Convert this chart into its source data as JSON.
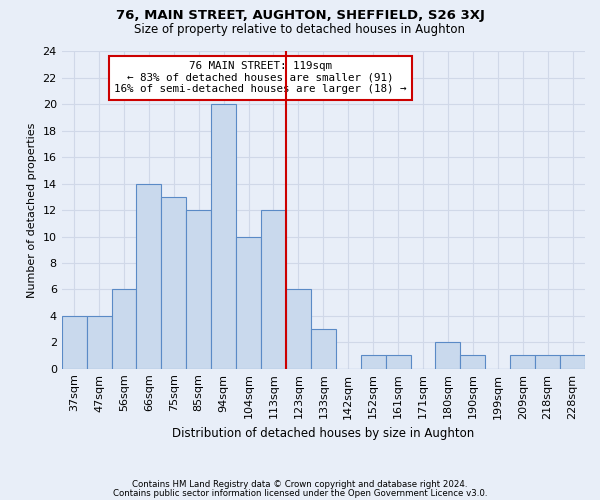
{
  "title1": "76, MAIN STREET, AUGHTON, SHEFFIELD, S26 3XJ",
  "title2": "Size of property relative to detached houses in Aughton",
  "xlabel": "Distribution of detached houses by size in Aughton",
  "ylabel": "Number of detached properties",
  "bin_labels": [
    "37sqm",
    "47sqm",
    "56sqm",
    "66sqm",
    "75sqm",
    "85sqm",
    "94sqm",
    "104sqm",
    "113sqm",
    "123sqm",
    "133sqm",
    "142sqm",
    "152sqm",
    "161sqm",
    "171sqm",
    "180sqm",
    "190sqm",
    "199sqm",
    "209sqm",
    "218sqm",
    "228sqm"
  ],
  "values": [
    4,
    4,
    6,
    14,
    13,
    12,
    20,
    10,
    12,
    6,
    3,
    0,
    1,
    1,
    0,
    2,
    1,
    0,
    1,
    1,
    1
  ],
  "bar_color": "#c9d9ed",
  "bar_edge_color": "#5a8ac6",
  "vline_x": 8.5,
  "vline_color": "#cc0000",
  "annotation_text": "76 MAIN STREET: 119sqm\n← 83% of detached houses are smaller (91)\n16% of semi-detached houses are larger (18) →",
  "annotation_box_color": "#ffffff",
  "annotation_box_edge": "#cc0000",
  "ylim": [
    0,
    24
  ],
  "yticks": [
    0,
    2,
    4,
    6,
    8,
    10,
    12,
    14,
    16,
    18,
    20,
    22,
    24
  ],
  "grid_color": "#d0d8e8",
  "bg_color": "#e8eef8",
  "footnote1": "Contains HM Land Registry data © Crown copyright and database right 2024.",
  "footnote2": "Contains public sector information licensed under the Open Government Licence v3.0."
}
